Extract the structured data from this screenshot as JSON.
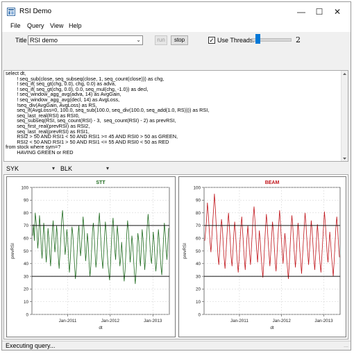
{
  "window": {
    "title": "RSI Demo"
  },
  "menu": {
    "items": [
      "File",
      "Query",
      "View",
      "Help"
    ]
  },
  "toolbar": {
    "title_label": "Title",
    "title_value": "RSI demo",
    "run_label": "run",
    "stop_label": "stop",
    "threads_label": "Use Threads:",
    "threads_checked": true,
    "threads_value": "2",
    "threads_level": 0.1
  },
  "query": {
    "lines": [
      "select dt,",
      "        ! seq_sub(close, seq_subseq(close, 1, seq_count(close))) as chg,",
      "        ! seq_if( seq_gt(chg, 0.0), chg, 0.0) as adva,",
      "        ! seq_if( seq_gt(chg, 0.0), 0.0, seq_mul(chg, -1.0)) as decl,",
      "        ! seq_window_agg_avg(adva, 14) as AvgGain,",
      "        ! seq_window_agg_avg(decl, 14) as AvgLoss,",
      "        !seq_div(AvgGain, AvgLoss) as RS,",
      "        seq_if(AvgLoss=0, 100.0, seq_sub(100.0, seq_div(100.0, seq_add(1.0, RS)))) as RSI,",
      "        seq_last_real(RSI) as RSI0,",
      "        seq_subseq(RSI, seq_count(RSI) - 3,  seq_count(RSI) - 2) as prevRSI,",
      "        seq_first_real(prevRSI) as RSI2,",
      "        seq_last_real(prevRSI) as RSI1,",
      "        RSI2 > 50 AND RSI1 < 50 AND RSI1 >= 45 AND RSI0 > 50 as GREEN,",
      "        RSI2 < 50 AND RSI1 > 50 AND RSI1 <= 55 AND RSI0 < 50 as RED",
      "from stock where sym=?",
      "        HAVING GREEN or RED"
    ]
  },
  "selectors": {
    "left": "SYK",
    "right": "BLK"
  },
  "colors": {
    "green_series": "#1f6b1f",
    "red_series": "#c0141a",
    "accent": "#0078d7"
  },
  "chart_data": [
    {
      "type": "line",
      "title": "STT",
      "xlabel": "dt",
      "ylabel": "prevRSI",
      "ylim": [
        0,
        100
      ],
      "yticks": [
        "0",
        "10",
        "20",
        "30",
        "40",
        "50",
        "60",
        "70",
        "80",
        "90",
        "100"
      ],
      "xticks": [
        "Jan-2011",
        "Jan-2012",
        "Jan-2013"
      ],
      "hlines": [
        30,
        70
      ],
      "series": [
        {
          "values": [
            62,
            71,
            58,
            80,
            74,
            66,
            52,
            60,
            78,
            69,
            55,
            44,
            58,
            72,
            63,
            50,
            41,
            55,
            68,
            60,
            47,
            38,
            52,
            66,
            74,
            60,
            49,
            57,
            70,
            62,
            45,
            36,
            48,
            61,
            75,
            82,
            70,
            58,
            47,
            55,
            67,
            59,
            44,
            33,
            42,
            57,
            69,
            63,
            50,
            39,
            28,
            35,
            48,
            62,
            70,
            58,
            46,
            53,
            65,
            77,
            68,
            54,
            42,
            51,
            64,
            56,
            40,
            30,
            38,
            52,
            66,
            72,
            61,
            48,
            37,
            45,
            59,
            71,
            80,
            68,
            55,
            44,
            36,
            47,
            60,
            73,
            65,
            52,
            40,
            33,
            27,
            39,
            55,
            68,
            76,
            64,
            51,
            43,
            58,
            70,
            62,
            49,
            38,
            45,
            57,
            48,
            35,
            26,
            34,
            49,
            63,
            74,
            66,
            53,
            41,
            50,
            62,
            55,
            43,
            32,
            24,
            36,
            50,
            64,
            58,
            46,
            38,
            52,
            67,
            60,
            47,
            35,
            44,
            58,
            70,
            79,
            69,
            56,
            45,
            40,
            53,
            65,
            57,
            44,
            34,
            41,
            55,
            67,
            59,
            48,
            37,
            31,
            45,
            60,
            72,
            63,
            51,
            43,
            56,
            68
          ]
        }
      ]
    },
    {
      "type": "line",
      "title": "BEAM",
      "xlabel": "dt",
      "ylabel": "prevRSI",
      "ylim": [
        0,
        100
      ],
      "yticks": [
        "0",
        "10",
        "20",
        "30",
        "40",
        "50",
        "60",
        "70",
        "80",
        "90",
        "100"
      ],
      "xticks": [
        "Jan-2011",
        "Jan-2012",
        "Jan-2013"
      ],
      "hlines": [
        30,
        70
      ],
      "series": [
        {
          "values": [
            58,
            66,
            74,
            88,
            79,
            68,
            57,
            49,
            60,
            72,
            83,
            95,
            84,
            70,
            58,
            46,
            39,
            52,
            64,
            75,
            68,
            55,
            44,
            36,
            47,
            60,
            71,
            80,
            69,
            57,
            45,
            38,
            50,
            62,
            73,
            64,
            52,
            41,
            33,
            44,
            57,
            68,
            77,
            66,
            54,
            43,
            35,
            48,
            61,
            70,
            59,
            47,
            39,
            52,
            65,
            76,
            85,
            74,
            62,
            50,
            41,
            53,
            66,
            58,
            46,
            37,
            29,
            40,
            55,
            68,
            79,
            70,
            58,
            47,
            38,
            49,
            62,
            73,
            65,
            53,
            42,
            34,
            46,
            59,
            71,
            82,
            72,
            60,
            49,
            40,
            52,
            64,
            56,
            45,
            36,
            28,
            39,
            54,
            67,
            78,
            69,
            57,
            46,
            37,
            48,
            61,
            72,
            63,
            51,
            41,
            32,
            44,
            57,
            69,
            80,
            71,
            59,
            48,
            39,
            50,
            63,
            74,
            66,
            54,
            43,
            35,
            47,
            60,
            71,
            62,
            50,
            40,
            33,
            45,
            58,
            70,
            81,
            72,
            60,
            49,
            41,
            53,
            65,
            57,
            46,
            38,
            30,
            42,
            56,
            68,
            77,
            67,
            55,
            45
          ]
        }
      ]
    }
  ],
  "status": {
    "text": "Executing query..."
  }
}
